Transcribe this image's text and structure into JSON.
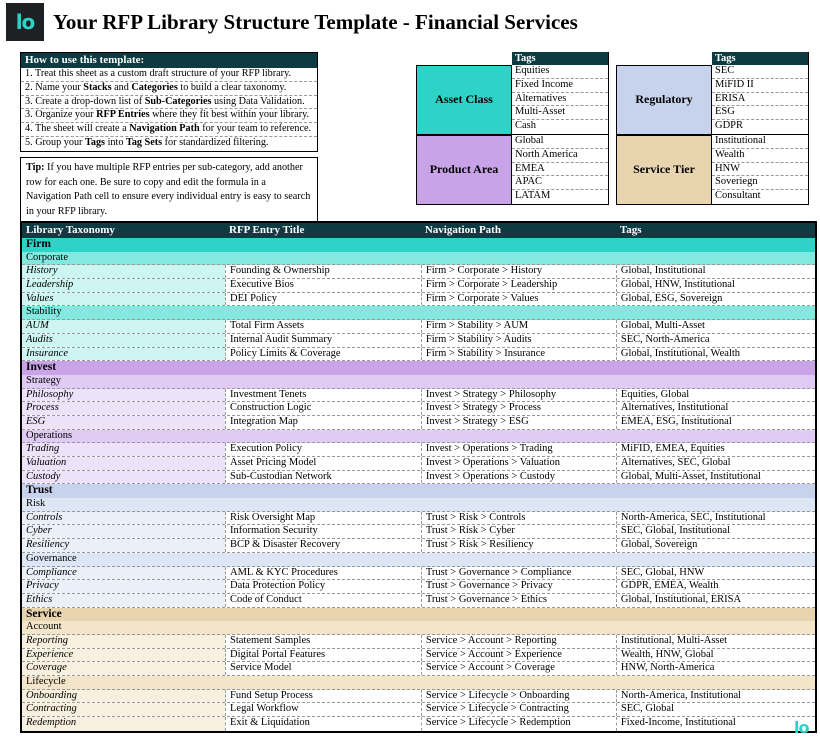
{
  "colors": {
    "header_bar": "#0d3b41",
    "accent_teal": "#2bd4c9",
    "logo_background": "#1d2123"
  },
  "header": {
    "logo_text": "lo",
    "title": "Your RFP Library Structure Template - Financial Services"
  },
  "instructions": {
    "title": "How to use this template:",
    "lines": [
      [
        "1. Treat this sheet as a custom draft structure of your RFP library."
      ],
      [
        "2. Name your ",
        {
          "b": "Stacks"
        },
        " and ",
        {
          "b": "Categories"
        },
        " to build a clear taxonomy."
      ],
      [
        "3. Create a drop-down list of ",
        {
          "b": "Sub-Categories"
        },
        " using Data Validation."
      ],
      [
        "3. Organize your ",
        {
          "b": "RFP Entries"
        },
        " where they fit best within your library."
      ],
      [
        "4. The sheet will create a ",
        {
          "b": "Navigation Path"
        },
        " for your team to reference."
      ],
      [
        "5. Group your ",
        {
          "b": "Tags"
        },
        " into ",
        {
          "b": "Tag Sets"
        },
        " for standardized filtering."
      ]
    ]
  },
  "tip": {
    "segments": [
      {
        "b": "Tip:"
      },
      " If you have multiple RFP entries per sub-category, add another row for each one. Be sure to copy and edit the formula in a Navigation Path cell to ensure every individual entry is easy to search in your RFP library."
    ]
  },
  "tag_sets": {
    "header_label": "Tags",
    "groups": [
      {
        "name": "Asset Class",
        "color": "#2ed3c7",
        "has_header": true,
        "tags": [
          "Equities",
          "Fixed Income",
          "Alternatives",
          "Multi-Asset",
          "Cash"
        ]
      },
      {
        "name": "Regulatory",
        "color": "#c7d3ec",
        "has_header": true,
        "tags": [
          "SEC",
          "MiFID II",
          "ERISA",
          "ESG",
          "GDPR"
        ]
      },
      {
        "name": "Product Area",
        "color": "#c9a3e8",
        "has_header": false,
        "tags": [
          "Global",
          "North America",
          "EMEA",
          "APAC",
          "LATAM"
        ]
      },
      {
        "name": "Service Tier",
        "color": "#e8d4ae",
        "has_header": false,
        "tags": [
          "Institutional",
          "Wealth",
          "HNW",
          "Soveriegn",
          "Consultant"
        ]
      }
    ]
  },
  "table": {
    "columns": [
      "Library Taxonomy",
      "RFP Entry Title",
      "Navigation Path",
      "Tags"
    ],
    "sections": [
      {
        "name": "Firm",
        "colors": {
          "section": "#2ed3c7",
          "category": "#82e8e0",
          "cell": "#cdf5f1"
        },
        "categories": [
          {
            "name": "Corporate",
            "entries": [
              {
                "sub": "History",
                "title": "Founding & Ownership",
                "path": "Firm > Corporate > History",
                "tags": "Global, Institutional"
              },
              {
                "sub": "Leadership",
                "title": "Executive Bios",
                "path": "Firm > Corporate > Leadership",
                "tags": "Global, HNW, Institutional"
              },
              {
                "sub": "Values",
                "title": "DEI Policy",
                "path": "Firm > Corporate > Values",
                "tags": "Global, ESG, Sovereign"
              }
            ]
          },
          {
            "name": "Stability",
            "entries": [
              {
                "sub": "AUM",
                "title": "Total Firm Assets",
                "path": "Firm > Stability > AUM",
                "tags": "Global, Multi-Asset"
              },
              {
                "sub": "Audits",
                "title": "Internal Audit Summary",
                "path": "Firm > Stability > Audits",
                "tags": "SEC, North-America"
              },
              {
                "sub": "Insurance",
                "title": "Policy Limits & Coverage",
                "path": "Firm > Stability > Insurance",
                "tags": "Global, Institutional, Wealth"
              }
            ]
          }
        ]
      },
      {
        "name": "Invest",
        "colors": {
          "section": "#c9a3e8",
          "category": "#e0cbf4",
          "cell": "#eee2fa"
        },
        "categories": [
          {
            "name": "Strategy",
            "entries": [
              {
                "sub": "Philosophy",
                "title": "Investment Tenets",
                "path": "Invest > Strategy > Philosophy",
                "tags": "Equities, Global"
              },
              {
                "sub": "Process",
                "title": "Construction Logic",
                "path": "Invest > Strategy > Process",
                "tags": "Alternatives, Institutional"
              },
              {
                "sub": "ESG",
                "title": "Integration Map",
                "path": "Invest > Strategy > ESG",
                "tags": "EMEA, ESG, Institutional"
              }
            ]
          },
          {
            "name": "Operations",
            "entries": [
              {
                "sub": "Trading",
                "title": "Execution Policy",
                "path": "Invest > Operations > Trading",
                "tags": "MiFID, EMEA, Equities"
              },
              {
                "sub": "Valuation",
                "title": "Asset Pricing Model",
                "path": "Invest > Operations > Valuation",
                "tags": "Alternatives, SEC, Global"
              },
              {
                "sub": "Custody",
                "title": "Sub-Custodian Network",
                "path": "Invest > Operations > Custody",
                "tags": "Global, Multi-Asset, Institutional"
              }
            ]
          }
        ]
      },
      {
        "name": "Trust",
        "colors": {
          "section": "#c7d3ec",
          "category": "#dde6f5",
          "cell": "#eaeff8"
        },
        "categories": [
          {
            "name": "Risk",
            "entries": [
              {
                "sub": "Controls",
                "title": "Risk Oversight Map",
                "path": "Trust > Risk > Controls",
                "tags": "North-America, SEC, Institutional"
              },
              {
                "sub": "Cyber",
                "title": "Information Security",
                "path": "Trust > Risk > Cyber",
                "tags": "SEC, Global, Institutional"
              },
              {
                "sub": "Resiliency",
                "title": "BCP & Disaster Recovery",
                "path": "Trust > Risk > Resiliency",
                "tags": "Global, Sovereign"
              }
            ]
          },
          {
            "name": "Governance",
            "entries": [
              {
                "sub": "Compliance",
                "title": "AML & KYC Procedures",
                "path": "Trust > Governance > Compliance",
                "tags": "SEC, Global, HNW"
              },
              {
                "sub": "Privacy",
                "title": "Data Protection Policy",
                "path": "Trust > Governance > Privacy",
                "tags": "GDPR, EMEA, Wealth"
              },
              {
                "sub": "Ethics",
                "title": "Code of Conduct",
                "path": "Trust > Governance > Ethics",
                "tags": "Global, Institutional, ERISA"
              }
            ]
          }
        ]
      },
      {
        "name": "Service",
        "colors": {
          "section": "#e8d4ae",
          "category": "#f2e5c9",
          "cell": "#f8f0de"
        },
        "categories": [
          {
            "name": "Account",
            "entries": [
              {
                "sub": "Reporting",
                "title": "Statement Samples",
                "path": "Service > Account > Reporting",
                "tags": "Institutional, Multi-Asset"
              },
              {
                "sub": "Experience",
                "title": "Digital Portal Features",
                "path": "Service > Account > Experience",
                "tags": "Wealth, HNW, Global"
              },
              {
                "sub": "Coverage",
                "title": "Service Model",
                "path": "Service > Account > Coverage",
                "tags": "HNW, North-America"
              }
            ]
          },
          {
            "name": "Lifecycle",
            "entries": [
              {
                "sub": "Onboarding",
                "title": "Fund Setup Process",
                "path": "Service > Lifecycle > Onboarding",
                "tags": "North-America, Institutional"
              },
              {
                "sub": "Contracting",
                "title": "Legal Workflow",
                "path": "Service > Lifecycle > Contracting",
                "tags": "SEC, Global"
              },
              {
                "sub": "Redemption",
                "title": "Exit & Liquidation",
                "path": "Service > Lifecycle > Redemption",
                "tags": "Fixed-Income, Institutional"
              }
            ]
          }
        ]
      }
    ]
  },
  "footer": {
    "logo_text": "lo"
  }
}
